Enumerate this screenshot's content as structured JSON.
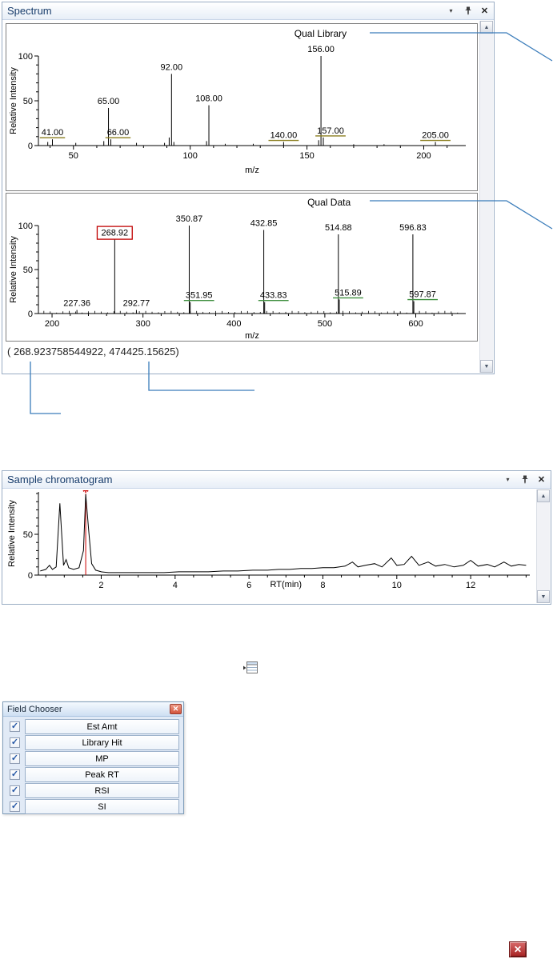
{
  "colors": {
    "callout": "#3a7cba",
    "panel_title": "#173c6b",
    "selected_box": "#c00000",
    "marker_red": "#cc0000"
  },
  "icons": {
    "chevron": "▾",
    "close": "✕",
    "scroll_up": "▲",
    "scroll_down": "▼",
    "check": "✓",
    "red_close": "✕"
  },
  "spectrum_panel": {
    "title": "Spectrum",
    "status_text": "( 268.923758544922, 474425.15625)"
  },
  "chromatogram_panel": {
    "title": "Sample chromatogram"
  },
  "field_chooser": {
    "title": "Field Chooser",
    "fields": [
      {
        "label": "Est Amt",
        "checked": true
      },
      {
        "label": "Library Hit",
        "checked": true
      },
      {
        "label": "MP",
        "checked": true
      },
      {
        "label": "Peak RT",
        "checked": true
      },
      {
        "label": "RSI",
        "checked": true
      },
      {
        "label": "SI",
        "checked": true
      }
    ]
  },
  "chart_data": [
    {
      "type": "bar",
      "title": "Qual Library",
      "xlabel": "m/z",
      "ylabel": "Relative Intensity",
      "xlim": [
        35,
        218
      ],
      "ylim": [
        0,
        100
      ],
      "xticks": [
        50,
        100,
        150,
        200
      ],
      "xminor": 10,
      "yticks": [
        0,
        50,
        100
      ],
      "yminor": 10,
      "underline_color": "#8a7d1e",
      "peaks": [
        {
          "x": 41,
          "y": 7,
          "label": "41.00",
          "underline": true
        },
        {
          "x": 65,
          "y": 42,
          "label": "65.00"
        },
        {
          "x": 66,
          "y": 7,
          "label": "66.00",
          "underline": true,
          "label_dx": 9
        },
        {
          "x": 92,
          "y": 80,
          "label": "92.00"
        },
        {
          "x": 108,
          "y": 45,
          "label": "108.00"
        },
        {
          "x": 140,
          "y": 4,
          "label": "140.00",
          "underline": true
        },
        {
          "x": 156,
          "y": 100,
          "label": "156.00"
        },
        {
          "x": 157,
          "y": 9,
          "label": "157.00",
          "underline": true,
          "label_dx": 9
        },
        {
          "x": 205,
          "y": 4,
          "label": "205.00",
          "underline": true
        }
      ],
      "minor_peaks": [
        [
          39,
          4
        ],
        [
          51,
          3
        ],
        [
          63,
          5
        ],
        [
          77,
          3
        ],
        [
          89,
          3
        ],
        [
          91,
          9
        ],
        [
          93,
          4
        ],
        [
          107,
          5
        ],
        [
          115,
          2
        ],
        [
          127,
          2
        ],
        [
          155,
          6
        ],
        [
          170,
          1.5
        ],
        [
          183,
          1.5
        ]
      ]
    },
    {
      "type": "bar",
      "title": "Qual Data",
      "xlabel": "m/z",
      "ylabel": "Relative Intensity",
      "xlim": [
        185,
        655
      ],
      "ylim": [
        0,
        100
      ],
      "xticks": [
        200,
        300,
        400,
        500,
        600
      ],
      "xminor": 20,
      "yticks": [
        0,
        50,
        100
      ],
      "yminor": 10,
      "underline_color": "#3f8f3f",
      "peaks": [
        {
          "x": 227.36,
          "y": 4,
          "label": "227.36"
        },
        {
          "x": 268.92,
          "y": 84,
          "label": "268.92",
          "boxed": true
        },
        {
          "x": 292.77,
          "y": 4,
          "label": "292.77"
        },
        {
          "x": 350.87,
          "y": 100,
          "label": "350.87"
        },
        {
          "x": 351.95,
          "y": 13,
          "label": "351.95",
          "underline": true,
          "label_dx": 11
        },
        {
          "x": 432.85,
          "y": 95,
          "label": "432.85"
        },
        {
          "x": 433.83,
          "y": 13,
          "label": "433.83",
          "underline": true,
          "label_dx": 11
        },
        {
          "x": 514.88,
          "y": 90,
          "label": "514.88"
        },
        {
          "x": 515.89,
          "y": 16,
          "label": "515.89",
          "underline": true,
          "label_dx": 11
        },
        {
          "x": 596.83,
          "y": 90,
          "label": "596.83"
        },
        {
          "x": 597.87,
          "y": 14,
          "label": "597.87",
          "underline": true,
          "label_dx": 11
        }
      ],
      "noise": {
        "start": 6,
        "step": 7,
        "base": 1,
        "amp": 2
      }
    },
    {
      "type": "line",
      "title": "",
      "xlabel": "RT(min)",
      "ylabel": "Relative Intensity",
      "xlim": [
        0.3,
        13.6
      ],
      "ylim": [
        0,
        102
      ],
      "xticks": [
        2,
        4,
        6,
        8,
        10,
        12
      ],
      "xminor": 0.5,
      "yticks": [
        0,
        50
      ],
      "yminor": 10,
      "marker": {
        "x": 1.58,
        "top": 100
      },
      "points": [
        [
          0.35,
          5
        ],
        [
          0.5,
          7
        ],
        [
          0.6,
          12
        ],
        [
          0.68,
          7
        ],
        [
          0.78,
          10
        ],
        [
          0.88,
          88
        ],
        [
          0.98,
          12
        ],
        [
          1.05,
          19
        ],
        [
          1.12,
          9
        ],
        [
          1.25,
          7
        ],
        [
          1.4,
          9
        ],
        [
          1.52,
          30
        ],
        [
          1.58,
          99
        ],
        [
          1.66,
          55
        ],
        [
          1.74,
          14
        ],
        [
          1.85,
          6
        ],
        [
          2.0,
          4
        ],
        [
          2.2,
          3
        ],
        [
          2.5,
          3
        ],
        [
          2.9,
          3
        ],
        [
          3.3,
          3
        ],
        [
          3.7,
          3
        ],
        [
          4.1,
          4
        ],
        [
          4.5,
          4
        ],
        [
          4.9,
          4
        ],
        [
          5.3,
          5
        ],
        [
          5.7,
          5
        ],
        [
          6.1,
          6
        ],
        [
          6.5,
          6
        ],
        [
          6.8,
          7
        ],
        [
          7.1,
          7
        ],
        [
          7.4,
          8
        ],
        [
          7.7,
          8
        ],
        [
          8.0,
          9
        ],
        [
          8.3,
          9
        ],
        [
          8.6,
          11
        ],
        [
          8.8,
          16
        ],
        [
          8.95,
          10
        ],
        [
          9.15,
          12
        ],
        [
          9.4,
          14
        ],
        [
          9.6,
          10
        ],
        [
          9.85,
          21
        ],
        [
          10.0,
          12
        ],
        [
          10.2,
          13
        ],
        [
          10.4,
          23
        ],
        [
          10.6,
          12
        ],
        [
          10.85,
          16
        ],
        [
          11.05,
          11
        ],
        [
          11.3,
          13
        ],
        [
          11.55,
          10
        ],
        [
          11.8,
          12
        ],
        [
          12.0,
          18
        ],
        [
          12.2,
          11
        ],
        [
          12.45,
          13
        ],
        [
          12.65,
          10
        ],
        [
          12.9,
          16
        ],
        [
          13.1,
          11
        ],
        [
          13.3,
          13
        ],
        [
          13.5,
          12
        ]
      ]
    }
  ]
}
